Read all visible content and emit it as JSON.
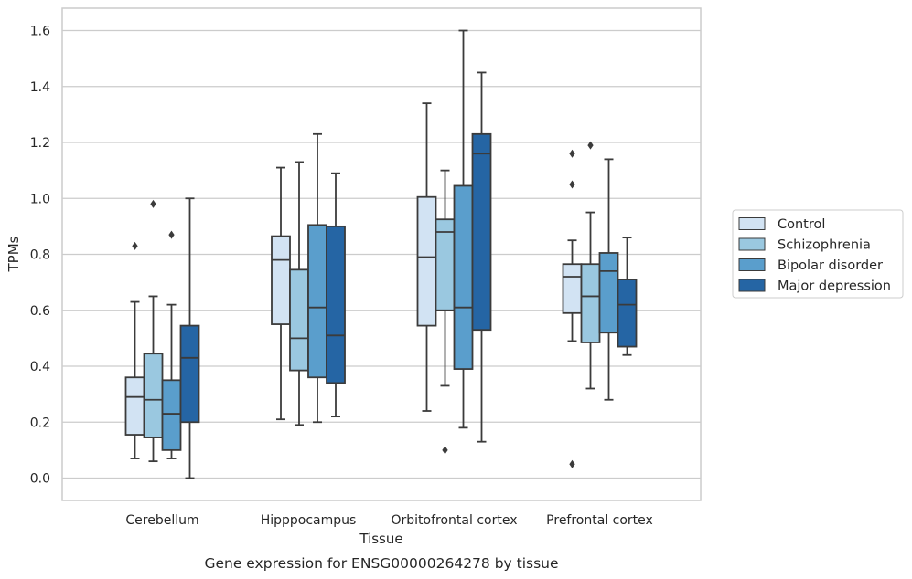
{
  "chart_data": {
    "type": "box",
    "xlabel": "Tissue",
    "ylabel": "TPMs",
    "caption": "Gene expression for ENSG00000264278 by tissue",
    "ylim": [
      -0.08,
      1.68
    ],
    "yticks": [
      0.0,
      0.2,
      0.4,
      0.6,
      0.8,
      1.0,
      1.2,
      1.4,
      1.6
    ],
    "ytick_labels": [
      "0.0",
      "0.2",
      "0.4",
      "0.6",
      "0.8",
      "1.0",
      "1.2",
      "1.4",
      "1.6"
    ],
    "grid": "horizontal",
    "legend_position": "right",
    "categories": [
      "Cerebellum",
      "Hipppocampus",
      "Orbitofrontal cortex",
      "Prefrontal cortex"
    ],
    "series": [
      {
        "name": "Control",
        "color": "#d2e3f3",
        "boxes": [
          {
            "whislo": 0.07,
            "q1": 0.155,
            "med": 0.29,
            "q3": 0.36,
            "whishi": 0.63,
            "fliers": [
              0.83
            ]
          },
          {
            "whislo": 0.21,
            "q1": 0.55,
            "med": 0.78,
            "q3": 0.865,
            "whishi": 1.11,
            "fliers": []
          },
          {
            "whislo": 0.24,
            "q1": 0.545,
            "med": 0.79,
            "q3": 1.005,
            "whishi": 1.34,
            "fliers": []
          },
          {
            "whislo": 0.49,
            "q1": 0.59,
            "med": 0.72,
            "q3": 0.765,
            "whishi": 0.85,
            "fliers": [
              1.16,
              1.05,
              0.05
            ]
          }
        ]
      },
      {
        "name": "Schizophrenia",
        "color": "#9ac8e0",
        "boxes": [
          {
            "whislo": 0.06,
            "q1": 0.145,
            "med": 0.28,
            "q3": 0.445,
            "whishi": 0.65,
            "fliers": [
              0.98
            ]
          },
          {
            "whislo": 0.19,
            "q1": 0.385,
            "med": 0.5,
            "q3": 0.745,
            "whishi": 1.13,
            "fliers": []
          },
          {
            "whislo": 0.33,
            "q1": 0.6,
            "med": 0.88,
            "q3": 0.925,
            "whishi": 1.1,
            "fliers": [
              0.1
            ]
          },
          {
            "whislo": 0.32,
            "q1": 0.485,
            "med": 0.65,
            "q3": 0.765,
            "whishi": 0.95,
            "fliers": [
              1.19
            ]
          }
        ]
      },
      {
        "name": "Bipolar disorder",
        "color": "#5a9ecc",
        "boxes": [
          {
            "whislo": 0.07,
            "q1": 0.1,
            "med": 0.23,
            "q3": 0.35,
            "whishi": 0.62,
            "fliers": [
              0.87
            ]
          },
          {
            "whislo": 0.2,
            "q1": 0.36,
            "med": 0.61,
            "q3": 0.905,
            "whishi": 1.23,
            "fliers": []
          },
          {
            "whislo": 0.18,
            "q1": 0.39,
            "med": 0.61,
            "q3": 1.045,
            "whishi": 1.6,
            "fliers": []
          },
          {
            "whislo": 0.28,
            "q1": 0.52,
            "med": 0.74,
            "q3": 0.805,
            "whishi": 1.14,
            "fliers": []
          }
        ]
      },
      {
        "name": "Major depression",
        "color": "#2565a4",
        "boxes": [
          {
            "whislo": 0.0,
            "q1": 0.2,
            "med": 0.43,
            "q3": 0.545,
            "whishi": 1.0,
            "fliers": []
          },
          {
            "whislo": 0.22,
            "q1": 0.34,
            "med": 0.51,
            "q3": 0.9,
            "whishi": 1.09,
            "fliers": []
          },
          {
            "whislo": 0.13,
            "q1": 0.53,
            "med": 1.16,
            "q3": 1.23,
            "whishi": 1.45,
            "fliers": []
          },
          {
            "whislo": 0.44,
            "q1": 0.47,
            "med": 0.62,
            "q3": 0.71,
            "whishi": 0.86,
            "fliers": []
          }
        ]
      }
    ]
  }
}
